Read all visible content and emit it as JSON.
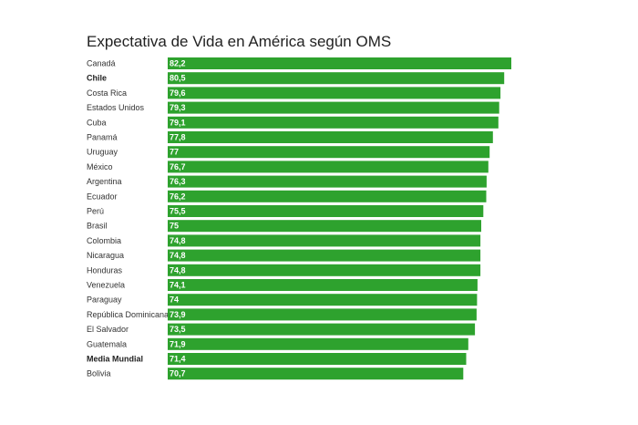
{
  "chart_data": {
    "type": "bar",
    "orientation": "horizontal",
    "title": "Expectativa de Vida en América según OMS",
    "xlabel": "",
    "ylabel": "",
    "bar_color": "#2ea22e",
    "grid": false,
    "categories": [
      "Canadá",
      "Chile",
      "Costa Rica",
      "Estados Unidos",
      "Cuba",
      "Panamá",
      "Uruguay",
      "México",
      "Argentina",
      "Ecuador",
      "Perú",
      "Brasil",
      "Colombia",
      "Nicaragua",
      "Honduras",
      "Venezuela",
      "Paraguay",
      "República Dominicana",
      "El Salvador",
      "Guatemala",
      "Media Mundial",
      "Bolivia"
    ],
    "values": [
      82.2,
      80.5,
      79.6,
      79.3,
      79.1,
      77.8,
      77,
      76.7,
      76.3,
      76.2,
      75.5,
      75,
      74.8,
      74.8,
      74.8,
      74.1,
      74,
      73.9,
      73.5,
      71.9,
      71.4,
      70.7
    ],
    "value_labels": [
      "82,2",
      "80,5",
      "79,6",
      "79,3",
      "79,1",
      "77,8",
      "77",
      "76,7",
      "76,3",
      "76,2",
      "75,5",
      "75",
      "74,8",
      "74,8",
      "74,8",
      "74,1",
      "74",
      "73,9",
      "73,5",
      "71,9",
      "71,4",
      "70,7"
    ],
    "bold_categories": [
      "Chile",
      "Media Mundial"
    ]
  }
}
